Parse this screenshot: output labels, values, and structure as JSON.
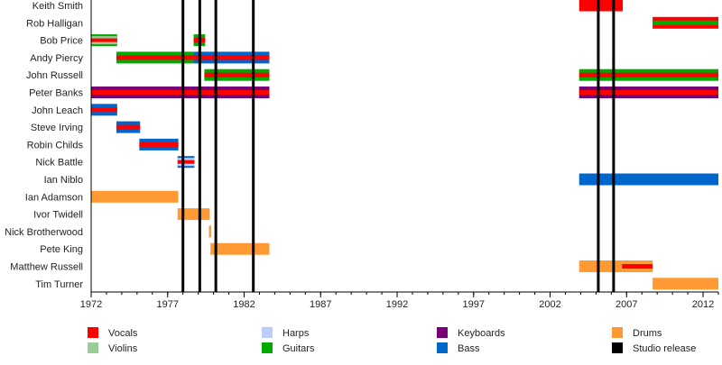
{
  "chart_data": {
    "type": "timeline",
    "xlim": [
      1972,
      2013
    ],
    "x_ticks": [
      1972,
      1977,
      1982,
      1987,
      1992,
      1997,
      2002,
      2007,
      2012
    ],
    "x_tick_labels": [
      "1972",
      "1977",
      "1982",
      "1987",
      "1992",
      "1997",
      "2002",
      "2007",
      "2012"
    ],
    "roles": {
      "vocals": {
        "label": "Vocals",
        "color": "#ff0000"
      },
      "violins": {
        "label": "Violins",
        "color": "#99cc99"
      },
      "harps": {
        "label": "Harps",
        "color": "#bbccff"
      },
      "guitars": {
        "label": "Guitars",
        "color": "#00aa00"
      },
      "keyboards": {
        "label": "Keyboards",
        "color": "#770077"
      },
      "bass": {
        "label": "Bass",
        "color": "#0066cc"
      },
      "drums": {
        "label": "Drums",
        "color": "#ff9933"
      },
      "studio": {
        "label": "Studio release",
        "color": "#000000"
      }
    },
    "legend_order": [
      "vocals",
      "violins",
      "harps",
      "guitars",
      "keyboards",
      "bass",
      "drums",
      "studio"
    ],
    "legend_placement": "bottom",
    "studio_releases": [
      1978.0,
      1979.1,
      1980.15,
      1982.6,
      2005.15,
      2006.15
    ],
    "members": [
      {
        "name": "Keith Smith",
        "segments": [
          {
            "start": 2003.9,
            "end": 2006.75,
            "roles": [
              "vocals"
            ]
          }
        ]
      },
      {
        "name": "Rob Halligan",
        "segments": [
          {
            "start": 2008.7,
            "end": 2013,
            "roles": [
              "vocals",
              "guitars"
            ]
          }
        ]
      },
      {
        "name": "Bob Price",
        "segments": [
          {
            "start": 1972,
            "end": 1973.7,
            "roles": [
              "guitars",
              "violins",
              "vocals"
            ]
          },
          {
            "start": 1978.7,
            "end": 1979.45,
            "roles": [
              "guitars",
              "vocals"
            ]
          }
        ]
      },
      {
        "name": "Andy Piercy",
        "segments": [
          {
            "start": 1973.65,
            "end": 1978.7,
            "roles": [
              "guitars",
              "vocals"
            ]
          },
          {
            "start": 1978.7,
            "end": 1983.65,
            "roles": [
              "bass",
              "vocals"
            ]
          }
        ]
      },
      {
        "name": "John Russell",
        "segments": [
          {
            "start": 1979.4,
            "end": 1983.65,
            "roles": [
              "guitars",
              "vocals"
            ]
          },
          {
            "start": 2003.9,
            "end": 2013,
            "roles": [
              "guitars",
              "vocals"
            ]
          }
        ]
      },
      {
        "name": "Peter Banks",
        "segments": [
          {
            "start": 1972,
            "end": 1983.65,
            "roles": [
              "keyboards",
              "vocals"
            ]
          },
          {
            "start": 2003.9,
            "end": 2013,
            "roles": [
              "keyboards",
              "vocals"
            ]
          }
        ]
      },
      {
        "name": "John Leach",
        "segments": [
          {
            "start": 1972,
            "end": 1973.7,
            "roles": [
              "bass",
              "vocals"
            ]
          }
        ]
      },
      {
        "name": "Steve Irving",
        "segments": [
          {
            "start": 1973.65,
            "end": 1975.2,
            "roles": [
              "bass",
              "vocals"
            ]
          }
        ]
      },
      {
        "name": "Robin Childs",
        "segments": [
          {
            "start": 1975.15,
            "end": 1977.7,
            "roles": [
              "bass",
              "vocals"
            ]
          }
        ]
      },
      {
        "name": "Nick Battle",
        "segments": [
          {
            "start": 1977.65,
            "end": 1978.75,
            "roles": [
              "bass",
              "harps",
              "vocals"
            ]
          }
        ]
      },
      {
        "name": "Ian Niblo",
        "segments": [
          {
            "start": 2003.9,
            "end": 2013,
            "roles": [
              "bass"
            ]
          }
        ]
      },
      {
        "name": "Ian Adamson",
        "segments": [
          {
            "start": 1972,
            "end": 1977.7,
            "roles": [
              "drums"
            ]
          }
        ]
      },
      {
        "name": "Ivor Twidell",
        "segments": [
          {
            "start": 1977.65,
            "end": 1979.75,
            "roles": [
              "drums"
            ]
          }
        ]
      },
      {
        "name": "Nick Brotherwood",
        "segments": [
          {
            "start": 1979.7,
            "end": 1979.85,
            "roles": [
              "drums"
            ]
          }
        ]
      },
      {
        "name": "Pete King",
        "segments": [
          {
            "start": 1979.8,
            "end": 1983.65,
            "roles": [
              "drums"
            ]
          }
        ]
      },
      {
        "name": "Matthew Russell",
        "segments": [
          {
            "start": 2003.9,
            "end": 2006.7,
            "roles": [
              "drums"
            ]
          },
          {
            "start": 2006.7,
            "end": 2008.7,
            "roles": [
              "drums",
              "vocals"
            ]
          }
        ]
      },
      {
        "name": "Tim Turner",
        "segments": [
          {
            "start": 2008.7,
            "end": 2013,
            "roles": [
              "drums"
            ]
          }
        ]
      }
    ]
  }
}
